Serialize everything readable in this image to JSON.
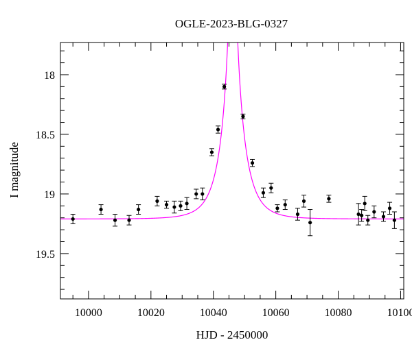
{
  "chart_data": {
    "type": "scatter",
    "title": "OGLE-2023-BLG-0327",
    "xlabel": "HJD - 2450000",
    "ylabel": "I magnitude",
    "xlim": [
      9991,
      10101
    ],
    "ylim": [
      19.88,
      17.73
    ],
    "y_inverted": true,
    "xticks": [
      10000,
      10020,
      10040,
      10060,
      10080,
      10100
    ],
    "yticks": [
      18,
      18.5,
      19,
      19.5
    ],
    "grid": false,
    "colors": {
      "points": "#000000",
      "model": "#ff00ff"
    },
    "model": {
      "type": "microlensing-fit",
      "baseline": 19.21,
      "t0": 10046.2,
      "peak": 17.3
    },
    "series": [
      {
        "points": [
          {
            "x": 9995.0,
            "y": 19.21,
            "err": 0.04
          },
          {
            "x": 10004.0,
            "y": 19.13,
            "err": 0.04
          },
          {
            "x": 10008.5,
            "y": 19.22,
            "err": 0.05
          },
          {
            "x": 10013.0,
            "y": 19.22,
            "err": 0.04
          },
          {
            "x": 10016.0,
            "y": 19.13,
            "err": 0.04
          },
          {
            "x": 10022.0,
            "y": 19.06,
            "err": 0.04
          },
          {
            "x": 10025.0,
            "y": 19.09,
            "err": 0.03
          },
          {
            "x": 10027.5,
            "y": 19.11,
            "err": 0.05
          },
          {
            "x": 10029.5,
            "y": 19.1,
            "err": 0.04
          },
          {
            "x": 10031.5,
            "y": 19.08,
            "err": 0.05
          },
          {
            "x": 10034.5,
            "y": 19.0,
            "err": 0.04
          },
          {
            "x": 10036.5,
            "y": 19.0,
            "err": 0.05
          },
          {
            "x": 10039.5,
            "y": 18.65,
            "err": 0.03
          },
          {
            "x": 10041.5,
            "y": 18.46,
            "err": 0.03
          },
          {
            "x": 10043.5,
            "y": 18.1,
            "err": 0.02
          },
          {
            "x": 10049.5,
            "y": 18.35,
            "err": 0.02
          },
          {
            "x": 10052.5,
            "y": 18.74,
            "err": 0.03
          },
          {
            "x": 10056.0,
            "y": 18.99,
            "err": 0.04
          },
          {
            "x": 10058.5,
            "y": 18.95,
            "err": 0.04
          },
          {
            "x": 10060.5,
            "y": 19.12,
            "err": 0.03
          },
          {
            "x": 10063.0,
            "y": 19.09,
            "err": 0.04
          },
          {
            "x": 10067.0,
            "y": 19.17,
            "err": 0.05
          },
          {
            "x": 10069.0,
            "y": 19.06,
            "err": 0.05
          },
          {
            "x": 10071.0,
            "y": 19.24,
            "err": 0.11
          },
          {
            "x": 10077.0,
            "y": 19.04,
            "err": 0.03
          },
          {
            "x": 10086.5,
            "y": 19.17,
            "err": 0.09
          },
          {
            "x": 10087.5,
            "y": 19.18,
            "err": 0.05
          },
          {
            "x": 10088.5,
            "y": 19.08,
            "err": 0.06
          },
          {
            "x": 10089.5,
            "y": 19.22,
            "err": 0.04
          },
          {
            "x": 10091.5,
            "y": 19.15,
            "err": 0.05
          },
          {
            "x": 10094.5,
            "y": 19.19,
            "err": 0.04
          },
          {
            "x": 10096.5,
            "y": 19.12,
            "err": 0.05
          },
          {
            "x": 10098.0,
            "y": 19.22,
            "err": 0.07
          }
        ]
      }
    ]
  }
}
